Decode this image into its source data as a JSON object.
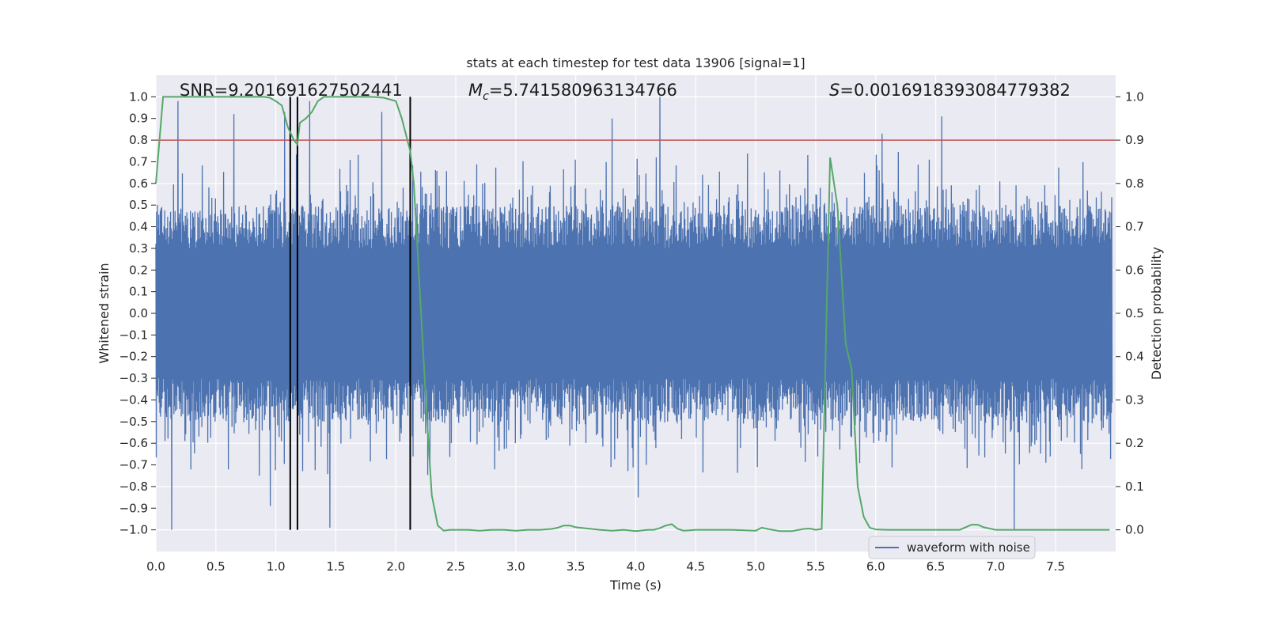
{
  "chart_data": {
    "type": "line",
    "title": "stats at each timestep for test data 13906 [signal=1]",
    "xlabel": "Time (s)",
    "ylabel_left": "Whitened strain",
    "ylabel_right": "Detection probability",
    "xlim": [
      0.0,
      8.0
    ],
    "ylim_left": [
      -1.1,
      1.1
    ],
    "ylim_right": [
      -0.05,
      1.05
    ],
    "x_ticks": [
      0.0,
      0.5,
      1.0,
      1.5,
      2.0,
      2.5,
      3.0,
      3.5,
      4.0,
      4.5,
      5.0,
      5.5,
      6.0,
      6.5,
      7.0,
      7.5
    ],
    "x_tick_labels": [
      "0.0",
      "0.5",
      "1.0",
      "1.5",
      "2.0",
      "2.5",
      "3.0",
      "3.5",
      "4.0",
      "4.5",
      "5.0",
      "5.5",
      "6.0",
      "6.5",
      "7.0",
      "7.5"
    ],
    "y_left_ticks": [
      1.0,
      0.9,
      0.8,
      0.7,
      0.6,
      0.5,
      0.4,
      0.3,
      0.2,
      0.1,
      0.0,
      -0.1,
      -0.2,
      -0.3,
      -0.4,
      -0.5,
      -0.6,
      -0.7,
      -0.8,
      -0.9,
      -1.0
    ],
    "y_left_tick_labels": [
      "1.0",
      "0.9",
      "0.8",
      "0.7",
      "0.6",
      "0.5",
      "0.4",
      "0.3",
      "0.2",
      "0.1",
      "0.0",
      "−0.1",
      "−0.2",
      "−0.3",
      "−0.4",
      "−0.5",
      "−0.6",
      "−0.7",
      "−0.8",
      "−0.9",
      "−1.0"
    ],
    "y_right_ticks": [
      1.0,
      0.9,
      0.8,
      0.7,
      0.6,
      0.5,
      0.4,
      0.3,
      0.2,
      0.1,
      0.0
    ],
    "y_right_tick_labels": [
      "1.0",
      "0.9",
      "0.8",
      "0.7",
      "0.6",
      "0.5",
      "0.4",
      "0.3",
      "0.2",
      "0.1",
      "0.0"
    ],
    "annotations": {
      "snr": "SNR=9.201691627502441",
      "mc": "=5.741580963134766",
      "mc_symbol": "M",
      "mc_sub": "c",
      "s": "=0.0016918393084779382",
      "s_symbol": "S"
    },
    "threshold": {
      "value": 0.9,
      "axis": "right",
      "color": "#c44e52"
    },
    "vlines": [
      1.12,
      1.18,
      2.12
    ],
    "waveform": {
      "name": "waveform with noise",
      "color": "#4c72b0",
      "envelope_note": "dense noisy strain series spanning roughly -1.0 to 1.0",
      "notable_peaks": [
        {
          "x": 0.18,
          "y": 0.98
        },
        {
          "x": 0.65,
          "y": 0.92
        },
        {
          "x": 1.07,
          "y": 0.93
        },
        {
          "x": 1.28,
          "y": 0.98
        },
        {
          "x": 1.88,
          "y": 0.93
        },
        {
          "x": 3.8,
          "y": 0.9
        },
        {
          "x": 4.2,
          "y": 1.0
        },
        {
          "x": 6.55,
          "y": 0.91
        },
        {
          "x": 6.05,
          "y": 0.83
        }
      ],
      "notable_troughs": [
        {
          "x": 0.13,
          "y": -1.0
        },
        {
          "x": 1.45,
          "y": -0.99
        },
        {
          "x": 7.15,
          "y": -1.0
        },
        {
          "x": 0.95,
          "y": -0.89
        },
        {
          "x": 4.02,
          "y": -0.85
        }
      ]
    },
    "detection_probability": {
      "name": "detection probability",
      "color": "#55a868",
      "x": [
        0.0,
        0.06,
        0.1,
        0.2,
        0.4,
        0.6,
        0.8,
        0.9,
        0.95,
        1.0,
        1.05,
        1.1,
        1.15,
        1.18,
        1.2,
        1.25,
        1.3,
        1.35,
        1.4,
        1.45,
        1.5,
        1.6,
        1.8,
        1.9,
        2.0,
        2.05,
        2.12,
        2.15,
        2.2,
        2.25,
        2.3,
        2.35,
        2.4,
        2.45,
        2.5,
        2.6,
        2.7,
        2.8,
        2.9,
        3.0,
        3.1,
        3.2,
        3.3,
        3.35,
        3.4,
        3.45,
        3.5,
        3.6,
        3.7,
        3.8,
        3.9,
        4.0,
        4.1,
        4.15,
        4.2,
        4.25,
        4.3,
        4.35,
        4.4,
        4.5,
        4.6,
        4.8,
        5.0,
        5.05,
        5.1,
        5.2,
        5.3,
        5.4,
        5.45,
        5.5,
        5.55,
        5.62,
        5.68,
        5.75,
        5.8,
        5.85,
        5.9,
        5.95,
        6.0,
        6.1,
        6.3,
        6.5,
        6.7,
        6.8,
        6.85,
        6.9,
        7.0,
        7.2,
        7.4,
        7.6,
        7.8,
        7.95
      ],
      "y": [
        0.8,
        1.0,
        1.0,
        1.0,
        1.0,
        1.0,
        1.0,
        1.0,
        0.998,
        0.99,
        0.98,
        0.93,
        0.9,
        0.89,
        0.94,
        0.95,
        0.965,
        0.99,
        1.0,
        1.0,
        1.0,
        1.0,
        1.0,
        0.998,
        0.99,
        0.95,
        0.875,
        0.8,
        0.55,
        0.3,
        0.08,
        0.01,
        -0.002,
        0.0,
        0.0,
        0.0,
        -0.002,
        0.0,
        0.0,
        -0.002,
        0.0,
        0.0,
        0.002,
        0.005,
        0.01,
        0.01,
        0.006,
        0.003,
        0.0,
        -0.002,
        0.0,
        -0.003,
        0.0,
        0.0,
        0.004,
        0.01,
        0.013,
        0.002,
        -0.002,
        0.0,
        0.0,
        0.0,
        -0.002,
        0.005,
        0.002,
        -0.003,
        -0.003,
        0.002,
        0.003,
        0.0,
        0.002,
        0.86,
        0.75,
        0.43,
        0.37,
        0.1,
        0.03,
        0.005,
        0.001,
        0.0,
        0.0,
        0.0,
        0.0,
        0.012,
        0.012,
        0.006,
        0.0,
        0.0,
        0.0,
        0.0,
        0.0,
        0.0
      ]
    },
    "legend": {
      "placement": "lower-center-right",
      "entries": [
        "waveform with noise"
      ]
    }
  }
}
